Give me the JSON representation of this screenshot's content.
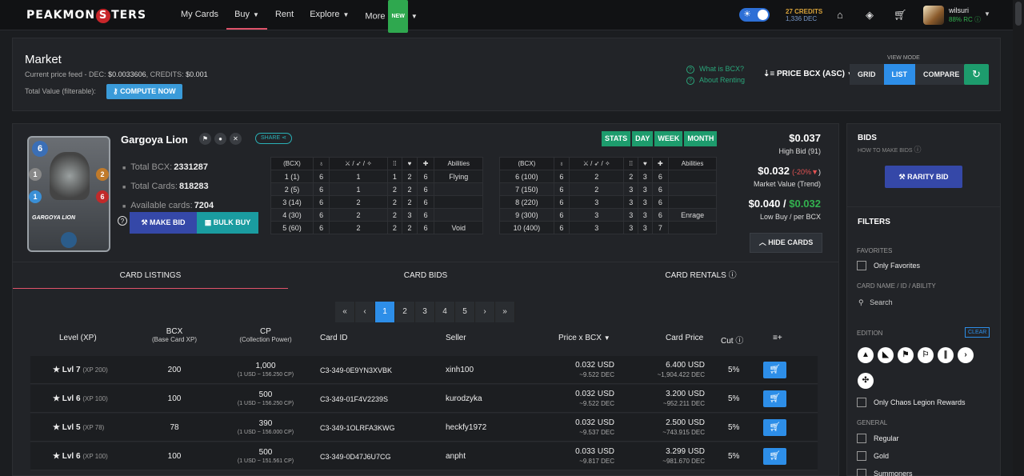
{
  "nav": {
    "logo": "PEAKMONSTERS",
    "links": [
      {
        "label": "My Cards"
      },
      {
        "label": "Buy"
      },
      {
        "label": "Rent"
      },
      {
        "label": "Explore"
      },
      {
        "label": "More"
      }
    ],
    "new_badge": "NEW",
    "credits": "27 CREDITS",
    "dec": "1,336 DEC",
    "username": "wilsuri",
    "rc": "88% RC"
  },
  "market": {
    "title": "Market",
    "feed_label": "Current price feed - DEC:",
    "feed_dec": "$0.0033606",
    "feed_credits_label": ", CREDITS:",
    "feed_credits": "$0.001",
    "total_value_label": "Total Value (filterable):",
    "compute_label": "COMPUTE NOW",
    "help_bcx": "What is BCX?",
    "help_renting": "About Renting",
    "sort_label": "PRICE BCX (ASC)",
    "view_mode_label": "VIEW MODE",
    "view_modes": [
      "GRID",
      "LIST",
      "COMPARE"
    ]
  },
  "card": {
    "name": "Gargoya Lion",
    "share_label": "SHARE",
    "image_name": "GARGOYA LION",
    "mana": "6",
    "attack": "1",
    "speed": "2",
    "health": "6",
    "armor": "1",
    "total_bcx_label": "Total BCX:",
    "total_bcx": "2331287",
    "total_cards_label": "Total Cards:",
    "total_cards": "818283",
    "available_label": "Available cards:",
    "available": "7204",
    "make_bid_label": "MAKE BID",
    "bulk_buy_label": "BULK BUY",
    "periods": [
      "STATS",
      "DAY",
      "WEEK",
      "MONTH"
    ],
    "hide_cards_label": "HIDE CARDS",
    "table_headers": [
      "(BCX)",
      "♁",
      "⚔ / ➶ / ✧",
      "⁞⁞",
      "♥",
      "✚",
      "Abilities"
    ],
    "levels_left": [
      [
        "1 (1)",
        "6",
        "1",
        "1",
        "2",
        "6",
        "Flying"
      ],
      [
        "2 (5)",
        "6",
        "1",
        "2",
        "2",
        "6",
        ""
      ],
      [
        "3 (14)",
        "6",
        "2",
        "2",
        "2",
        "6",
        ""
      ],
      [
        "4 (30)",
        "6",
        "2",
        "2",
        "3",
        "6",
        ""
      ],
      [
        "5 (60)",
        "6",
        "2",
        "2",
        "2",
        "6",
        "Void"
      ]
    ],
    "levels_right": [
      [
        "6 (100)",
        "6",
        "2",
        "2",
        "3",
        "6",
        ""
      ],
      [
        "7 (150)",
        "6",
        "2",
        "3",
        "3",
        "6",
        ""
      ],
      [
        "8 (220)",
        "6",
        "3",
        "3",
        "3",
        "6",
        ""
      ],
      [
        "9 (300)",
        "6",
        "3",
        "3",
        "3",
        "6",
        "Enrage"
      ],
      [
        "10 (400)",
        "6",
        "3",
        "3",
        "3",
        "7",
        ""
      ]
    ],
    "high_bid": "$0.037",
    "high_bid_label": "High Bid (91)",
    "market_value": "$0.032",
    "market_change": "(-20%",
    "market_change_close": ")",
    "market_value_label": "Market Value (Trend)",
    "low_buy": "$0.040",
    "per_bcx": "$0.032",
    "low_buy_label": "Low Buy / per BCX"
  },
  "tabs": [
    "CARD LISTINGS",
    "CARD BIDS",
    "CARD RENTALS"
  ],
  "pager": [
    "«",
    "‹",
    "1",
    "2",
    "3",
    "4",
    "5",
    "›",
    "»"
  ],
  "listing_headers": {
    "level": "Level (XP)",
    "bcx": "BCX",
    "bcx_sub": "(Base Card XP)",
    "cp": "CP",
    "cp_sub": "(Collection Power)",
    "card_id": "Card ID",
    "seller": "Seller",
    "price": "Price x BCX",
    "card_price": "Card Price",
    "cut": "Cut",
    "add_col": "≡+"
  },
  "listings": [
    {
      "level": "Lvl 7",
      "xp": "(XP 200)",
      "bcx": "200",
      "cp": "1,000",
      "cp_sub": "(1 USD ~ 156.250 CP)",
      "card_id": "C3-349-0E9YN3XVBK",
      "seller": "xinh100",
      "price_usd": "0.032 USD",
      "price_dec": "~9.522 DEC",
      "card_usd": "6.400 USD",
      "card_dec": "~1,904.422 DEC",
      "cut": "5%"
    },
    {
      "level": "Lvl 6",
      "xp": "(XP 100)",
      "bcx": "100",
      "cp": "500",
      "cp_sub": "(1 USD ~ 156.250 CP)",
      "card_id": "C3-349-01F4V2239S",
      "seller": "kurodzyka",
      "price_usd": "0.032 USD",
      "price_dec": "~9.522 DEC",
      "card_usd": "3.200 USD",
      "card_dec": "~952.211 DEC",
      "cut": "5%"
    },
    {
      "level": "Lvl 5",
      "xp": "(XP 78)",
      "bcx": "78",
      "cp": "390",
      "cp_sub": "(1 USD ~ 156.000 CP)",
      "card_id": "C3-349-1OLRFA3KWG",
      "seller": "heckfy1972",
      "price_usd": "0.032 USD",
      "price_dec": "~9.537 DEC",
      "card_usd": "2.500 USD",
      "card_dec": "~743.915 DEC",
      "cut": "5%"
    },
    {
      "level": "Lvl 6",
      "xp": "(XP 100)",
      "bcx": "100",
      "cp": "500",
      "cp_sub": "(1 USD ~ 151.561 CP)",
      "card_id": "C3-349-0D47J6U7CG",
      "seller": "anpht",
      "price_usd": "0.033 USD",
      "price_dec": "~9.817 DEC",
      "card_usd": "3.299 USD",
      "card_dec": "~981.670 DEC",
      "cut": "5%"
    }
  ],
  "bids": {
    "title": "BIDS",
    "how": "HOW TO MAKE BIDS",
    "rarity_label": "RARITY BID"
  },
  "filters": {
    "title": "FILTERS",
    "favorites_label": "FAVORITES",
    "only_favorites": "Only Favorites",
    "card_name_label": "CARD NAME / ID / ABILITY",
    "search_placeholder": "Search",
    "edition_label": "EDITION",
    "clear_label": "CLEAR",
    "only_chaos": "Only Chaos Legion Rewards",
    "general_label": "GENERAL",
    "regular": "Regular",
    "gold": "Gold",
    "summoners": "Summoners"
  },
  "colors": {
    "accent": "#2d8ee8",
    "green": "#1d9c6d",
    "bid": "#3548a8",
    "teal": "#1a9ca0",
    "danger": "#e55353"
  }
}
